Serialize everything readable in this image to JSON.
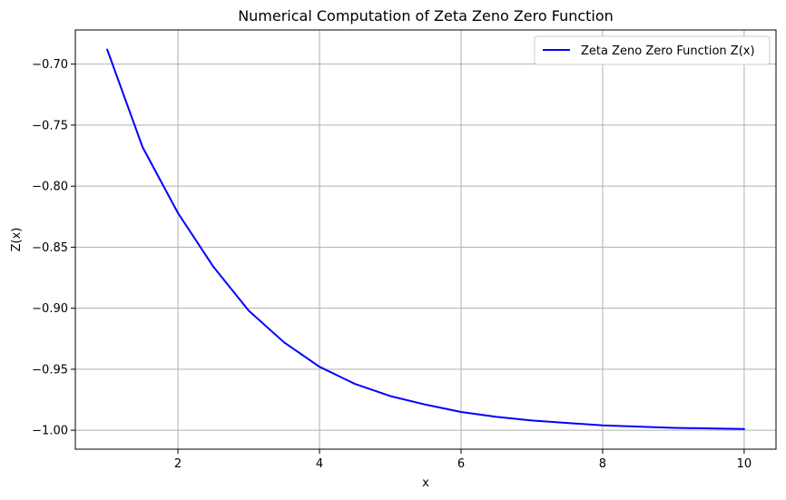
{
  "chart_data": {
    "type": "line",
    "title": "Numerical Computation of Zeta Zeno Zero Function",
    "xlabel": "x",
    "ylabel": "Z(x)",
    "xlim": [
      0.55,
      10.45
    ],
    "ylim": [
      -1.0155,
      -0.672
    ],
    "grid": true,
    "legend_position": "top-right",
    "x_ticks": [
      2,
      4,
      6,
      8,
      10
    ],
    "x_tick_labels": [
      "2",
      "4",
      "6",
      "8",
      "10"
    ],
    "y_ticks": [
      -0.7,
      -0.75,
      -0.8,
      -0.85,
      -0.9,
      -0.95,
      -1.0
    ],
    "y_tick_labels": [
      "−0.70",
      "−0.75",
      "−0.80",
      "−0.85",
      "−0.90",
      "−0.95",
      "−1.00"
    ],
    "series": [
      {
        "name": "Zeta Zeno Zero Function Z(x)",
        "color": "#0000ff",
        "x": [
          1.0,
          1.5,
          2.0,
          2.5,
          3.0,
          3.5,
          4.0,
          4.5,
          5.0,
          5.5,
          6.0,
          6.5,
          7.0,
          7.5,
          8.0,
          8.5,
          9.0,
          9.5,
          10.0
        ],
        "y": [
          -0.688,
          -0.768,
          -0.822,
          -0.866,
          -0.902,
          -0.928,
          -0.948,
          -0.962,
          -0.972,
          -0.979,
          -0.985,
          -0.989,
          -0.992,
          -0.994,
          -0.996,
          -0.997,
          -0.998,
          -0.9985,
          -0.999
        ]
      }
    ]
  }
}
